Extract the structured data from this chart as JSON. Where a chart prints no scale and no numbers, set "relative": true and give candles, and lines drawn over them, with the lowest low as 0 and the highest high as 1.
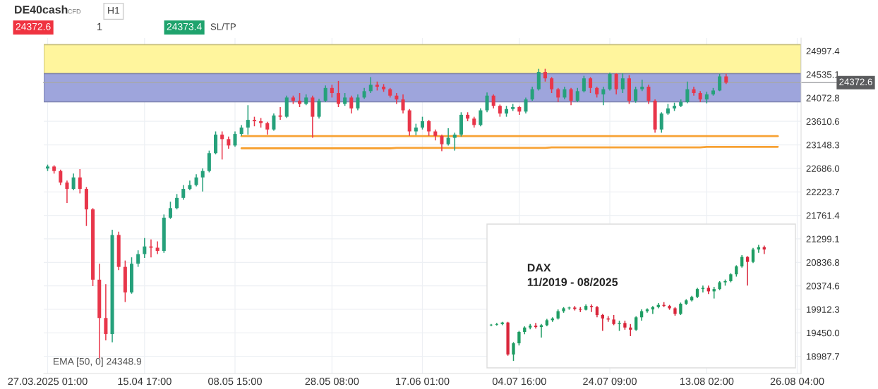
{
  "chart_data": [
    {
      "type": "candlestick",
      "categories": [
        "27.03.2025 01:00",
        null,
        null,
        null,
        null,
        null,
        null,
        null,
        null,
        null,
        null,
        null,
        null,
        null,
        null,
        "15.04 17:00",
        null,
        null,
        null,
        null,
        null,
        null,
        null,
        null,
        null,
        null,
        null,
        null,
        null,
        "08.05 15:00",
        null,
        null,
        null,
        null,
        null,
        null,
        null,
        null,
        null,
        null,
        null,
        null,
        null,
        null,
        "28.05 08:00",
        null,
        null,
        null,
        null,
        null,
        null,
        null,
        null,
        null,
        null,
        null,
        null,
        null,
        "17.06 01:00",
        null,
        null,
        null,
        null,
        null,
        null,
        null,
        null,
        null,
        null,
        null,
        null,
        null,
        null,
        "04.07 16:00",
        null,
        null,
        null,
        null,
        null,
        null,
        null,
        null,
        null,
        null,
        null,
        null,
        null,
        "24.07 09:00",
        null,
        null,
        null,
        null,
        null,
        null,
        null,
        null,
        null,
        null,
        null,
        null,
        null,
        null,
        "13.08 02:00",
        null,
        null,
        null,
        null,
        null,
        null,
        null,
        null,
        null,
        null,
        null,
        null,
        null,
        "26.08 04:00"
      ],
      "ohlc": [
        [
          22684,
          22759,
          22634,
          22722
        ],
        [
          22722,
          22747,
          22583,
          22634
        ],
        [
          22634,
          22659,
          22357,
          22407
        ],
        [
          22407,
          22445,
          22005,
          22282
        ],
        [
          22282,
          22583,
          22256,
          22508
        ],
        [
          22508,
          22671,
          22193,
          22282
        ],
        [
          22282,
          22319,
          21552,
          21879
        ],
        [
          21879,
          21904,
          20370,
          20496
        ],
        [
          20496,
          20810,
          18949,
          19742
        ],
        [
          19742,
          20408,
          19301,
          19427
        ],
        [
          19427,
          21477,
          19264,
          21376
        ],
        [
          21376,
          21439,
          20685,
          20748
        ],
        [
          20748,
          20873,
          20056,
          20245
        ],
        [
          20245,
          20936,
          20220,
          20810
        ],
        [
          20810,
          21074,
          20748,
          20999
        ],
        [
          20999,
          21314,
          20924,
          21150
        ],
        [
          21150,
          21289,
          20936,
          21125
        ],
        [
          21125,
          21251,
          20999,
          21062
        ],
        [
          21062,
          21779,
          21024,
          21716
        ],
        [
          21716,
          22030,
          21691,
          21904
        ],
        [
          21904,
          22181,
          21879,
          22105
        ],
        [
          22105,
          22357,
          22068,
          22282
        ],
        [
          22282,
          22445,
          22256,
          22357
        ],
        [
          22357,
          22571,
          22332,
          22508
        ],
        [
          22508,
          22684,
          22231,
          22634
        ],
        [
          22634,
          23036,
          22608,
          22986
        ],
        [
          22986,
          23413,
          22961,
          23350
        ],
        [
          23350,
          23413,
          22860,
          23262
        ],
        [
          23262,
          23313,
          23074,
          23137
        ],
        [
          23137,
          23413,
          23111,
          23363
        ],
        [
          23363,
          23539,
          23325,
          23489
        ],
        [
          23489,
          23929,
          23350,
          23640
        ],
        [
          23640,
          23702,
          23514,
          23614
        ],
        [
          23614,
          23677,
          23489,
          23577
        ],
        [
          23577,
          23602,
          23350,
          23451
        ],
        [
          23451,
          23765,
          23426,
          23727
        ],
        [
          23727,
          23891,
          23640,
          23702
        ],
        [
          23702,
          24117,
          23677,
          24080
        ],
        [
          24080,
          24117,
          23954,
          24017
        ],
        [
          24017,
          24168,
          23891,
          23954
        ],
        [
          23954,
          24142,
          23929,
          24080
        ],
        [
          24080,
          24117,
          23287,
          23702
        ],
        [
          23702,
          24054,
          23665,
          24017
        ],
        [
          24017,
          24318,
          23991,
          24268
        ],
        [
          24268,
          24331,
          24080,
          24168
        ],
        [
          24168,
          24406,
          23891,
          23954
        ],
        [
          23954,
          24168,
          23916,
          24080
        ],
        [
          24080,
          24117,
          23765,
          23866
        ],
        [
          23866,
          24142,
          23828,
          24080
        ],
        [
          24080,
          24268,
          24054,
          24205
        ],
        [
          24205,
          24482,
          24168,
          24331
        ],
        [
          24331,
          24394,
          24218,
          24293
        ],
        [
          24293,
          24344,
          24193,
          24243
        ],
        [
          24243,
          24268,
          24080,
          24117
        ],
        [
          24117,
          24168,
          23954,
          24042
        ],
        [
          24042,
          24142,
          23765,
          23828
        ],
        [
          23828,
          23853,
          23325,
          23413
        ],
        [
          23413,
          23564,
          23338,
          23489
        ],
        [
          23489,
          23702,
          23451,
          23614
        ],
        [
          23614,
          23640,
          23325,
          23413
        ],
        [
          23413,
          23451,
          23237,
          23325
        ],
        [
          23325,
          23350,
          23024,
          23162
        ],
        [
          23162,
          23476,
          23137,
          23287
        ],
        [
          23287,
          23388,
          23036,
          23350
        ],
        [
          23350,
          23790,
          23313,
          23740
        ],
        [
          23740,
          23790,
          23614,
          23665
        ],
        [
          23665,
          23702,
          23489,
          23539
        ],
        [
          23539,
          23866,
          23514,
          23828
        ],
        [
          23828,
          24180,
          23790,
          24117
        ],
        [
          24117,
          24142,
          23866,
          23916
        ],
        [
          23916,
          23941,
          23702,
          23765
        ],
        [
          23765,
          23916,
          23702,
          23853
        ],
        [
          23853,
          23954,
          23816,
          23891
        ],
        [
          23891,
          23916,
          23740,
          23803
        ],
        [
          23803,
          24080,
          23765,
          24042
        ],
        [
          24042,
          24293,
          24017,
          24243
        ],
        [
          24243,
          24645,
          24218,
          24583
        ],
        [
          24583,
          24645,
          24394,
          24457
        ],
        [
          24457,
          24482,
          24168,
          24243
        ],
        [
          24243,
          24268,
          23991,
          24080
        ],
        [
          24080,
          24293,
          24042,
          24243
        ],
        [
          24243,
          24268,
          23929,
          24017
        ],
        [
          24017,
          24268,
          23991,
          24205
        ],
        [
          24205,
          24507,
          24180,
          24457
        ],
        [
          24457,
          24482,
          24168,
          24268
        ],
        [
          24268,
          24293,
          24080,
          24142
        ],
        [
          24142,
          24293,
          23929,
          24243
        ],
        [
          24243,
          24570,
          24218,
          24545
        ],
        [
          24545,
          24557,
          24142,
          24243
        ],
        [
          24243,
          24557,
          24168,
          24457
        ],
        [
          24457,
          24520,
          23954,
          24017
        ],
        [
          24017,
          24293,
          23979,
          24243
        ],
        [
          24243,
          24432,
          24205,
          24293
        ],
        [
          24293,
          24331,
          23954,
          24017
        ],
        [
          24017,
          24042,
          23388,
          23451
        ],
        [
          23451,
          23790,
          23388,
          23765
        ],
        [
          23765,
          23954,
          23740,
          23866
        ],
        [
          23866,
          23979,
          23816,
          23916
        ],
        [
          23916,
          24042,
          23891,
          23991
        ],
        [
          23991,
          24394,
          23966,
          24243
        ],
        [
          24243,
          24293,
          24117,
          24168
        ],
        [
          24168,
          24205,
          23991,
          24042
        ],
        [
          24042,
          24193,
          23966,
          24142
        ],
        [
          24142,
          24268,
          24117,
          24218
        ],
        [
          24218,
          24545,
          24205,
          24495
        ],
        [
          24495,
          24545,
          24344,
          24372.6
        ],
        null,
        null,
        null,
        null,
        null,
        null,
        null,
        null,
        null,
        null,
        null
      ],
      "colors": [
        "#26a17b",
        "#e8364a",
        "#e8364a",
        "#e8364a",
        "#26a17b",
        "#e8364a",
        "#e8364a",
        "#e8364a",
        "#e8364a",
        "#e8364a",
        "#26a17b",
        "#e8364a",
        "#e8364a",
        "#26a17b",
        "#26a17b",
        "#26a17b",
        "#e8364a",
        "#e8364a",
        "#26a17b",
        "#26a17b",
        "#26a17b",
        "#26a17b",
        "#26a17b",
        "#26a17b",
        "#26a17b",
        "#26a17b",
        "#26a17b",
        "#e8364a",
        "#e8364a",
        "#26a17b",
        "#26a17b",
        "#26a17b",
        "#e8364a",
        "#e8364a",
        "#e8364a",
        "#26a17b",
        "#e8364a",
        "#26a17b",
        "#e8364a",
        "#e8364a",
        "#26a17b",
        "#e8364a",
        "#26a17b",
        "#26a17b",
        "#e8364a",
        "#e8364a",
        "#26a17b",
        "#e8364a",
        "#26a17b",
        "#26a17b",
        "#26a17b",
        "#e8364a",
        "#e8364a",
        "#e8364a",
        "#e8364a",
        "#e8364a",
        "#e8364a",
        "#26a17b",
        "#26a17b",
        "#e8364a",
        "#e8364a",
        "#e8364a",
        "#26a17b",
        "#26a17b",
        "#26a17b",
        "#e8364a",
        "#e8364a",
        "#26a17b",
        "#26a17b",
        "#e8364a",
        "#e8364a",
        "#26a17b",
        "#26a17b",
        "#e8364a",
        "#26a17b",
        "#26a17b",
        "#26a17b",
        "#e8364a",
        "#e8364a",
        "#e8364a",
        "#26a17b",
        "#e8364a",
        "#26a17b",
        "#26a17b",
        "#e8364a",
        "#e8364a",
        "#26a17b",
        "#26a17b",
        "#e8364a",
        "#26a17b",
        "#e8364a",
        "#26a17b",
        "#26a17b",
        "#e8364a",
        "#e8364a",
        "#26a17b",
        "#26a17b",
        "#26a17b",
        "#26a17b",
        "#26a17b",
        "#e8364a",
        "#e8364a",
        "#26a17b",
        "#26a17b",
        "#26a17b",
        "#e8364a",
        null,
        null,
        null,
        null,
        null,
        null,
        null,
        null,
        null,
        null,
        null
      ],
      "series": [
        {
          "type": "line",
          "color": "#f7a234",
          "values": [
            null,
            null,
            null,
            null,
            null,
            null,
            null,
            null,
            null,
            null,
            null,
            null,
            null,
            null,
            null,
            null,
            null,
            null,
            null,
            null,
            null,
            null,
            null,
            null,
            null,
            null,
            null,
            null,
            null,
            null,
            23320,
            23320,
            23320,
            23320,
            23320,
            23320,
            23320,
            23320,
            23320,
            23320,
            23320,
            23320,
            23320,
            23320,
            23320,
            23320,
            23320,
            23320,
            23320,
            23320,
            23320,
            23320,
            23320,
            23320,
            23320,
            23320,
            23320,
            23320,
            23320,
            23320,
            23320,
            23320,
            23320,
            23320,
            23320,
            23320,
            23320,
            23320,
            23320,
            23320,
            23320,
            23320,
            23320,
            23320,
            23320,
            23320,
            23320,
            23320,
            23320,
            23320,
            23320,
            23320,
            23320,
            23320,
            23320,
            23320,
            23320,
            23320,
            23320,
            23320,
            23320,
            23320,
            23320,
            23320,
            23320,
            23320,
            23320,
            23320,
            23320,
            23320,
            23320,
            23320,
            23320,
            23320,
            23320,
            23320,
            23320,
            23320,
            23320,
            23320,
            23320,
            23320,
            23320,
            23320,
            null,
            null,
            null
          ]
        },
        {
          "type": "line",
          "color": "#f7a234",
          "values": [
            null,
            null,
            null,
            null,
            null,
            null,
            null,
            null,
            null,
            null,
            null,
            null,
            null,
            null,
            null,
            null,
            null,
            null,
            null,
            null,
            null,
            null,
            null,
            null,
            null,
            null,
            null,
            null,
            null,
            null,
            23080,
            23080,
            23080,
            23080,
            23080,
            23080,
            23080,
            23080,
            23080,
            23080,
            23080,
            23080,
            23080,
            23080,
            23080,
            23080,
            23080,
            23080,
            23080,
            23080,
            23080,
            23080,
            23080,
            23080,
            23090,
            23090,
            23090,
            23090,
            23090,
            23090,
            23090,
            23090,
            23090,
            23090,
            23090,
            23090,
            23090,
            23090,
            23090,
            23090,
            23090,
            23090,
            23090,
            23090,
            23090,
            23090,
            23090,
            23090,
            23100,
            23100,
            23100,
            23100,
            23100,
            23100,
            23100,
            23100,
            23100,
            23100,
            23100,
            23100,
            23100,
            23100,
            23100,
            23100,
            23100,
            23100,
            23100,
            23100,
            23100,
            23100,
            23100,
            23100,
            23110,
            23110,
            23110,
            23110,
            23110,
            23110,
            23110,
            23110,
            23110,
            23110,
            23110,
            23110,
            null,
            null,
            null
          ]
        }
      ],
      "bands": [
        {
          "axis": "y",
          "from": 24550,
          "to": 25120,
          "color": "#fff59d"
        },
        {
          "axis": "y",
          "from": 23995,
          "to": 24550,
          "color": "#9ea5dc"
        }
      ],
      "ref_lines": [
        {
          "axis": "y",
          "value": 24372.6,
          "label": "24372.6",
          "color": "#a6a8ab"
        }
      ],
      "ylim": [
        18650,
        25250
      ],
      "yticks": [
        18987.7,
        {
          "value": 19450.0,
          "label": "19450.0"
        },
        19912.3,
        20374.6,
        20836.8,
        21299.1,
        21761.4,
        22223.7,
        {
          "value": 22686.0,
          "label": "22686.0"
        },
        23148.3,
        23610.6,
        24072.8,
        24535.1,
        24997.4
      ],
      "grid": true,
      "annotations": [
        "DE40cash",
        "CFD",
        "H1",
        "24372.6",
        "1",
        "24373.4",
        "SL/TP",
        "EMA [50, 0] 24348.9"
      ]
    },
    {
      "type": "candlestick",
      "title": "DAX",
      "subtitle": "11/2019 - 08/2025",
      "categories": [
        null,
        null,
        null,
        null,
        null,
        null,
        null,
        null,
        null,
        null,
        null,
        null,
        null,
        null,
        null,
        null,
        null,
        null,
        null,
        null,
        null,
        null,
        null,
        null,
        null,
        null,
        null,
        null,
        null,
        null,
        null,
        null,
        null,
        null,
        null,
        null,
        null,
        null,
        null,
        null,
        null,
        null,
        null,
        null,
        null,
        null,
        null,
        null,
        null,
        null
      ],
      "ohlc": [
        [
          0.308,
          0.318,
          0.298,
          0.312
        ],
        [
          0.312,
          0.327,
          0.304,
          0.318
        ],
        [
          0.318,
          0.337,
          0.308,
          0.331
        ],
        [
          0.331,
          0.337,
          0.045,
          0.055
        ],
        [
          0.055,
          0.162,
          0,
          0.152
        ],
        [
          0.152,
          0.259,
          0.133,
          0.25
        ],
        [
          0.25,
          0.298,
          0.23,
          0.288
        ],
        [
          0.288,
          0.318,
          0.273,
          0.304
        ],
        [
          0.304,
          0.327,
          0.279,
          0.292
        ],
        [
          0.292,
          0.318,
          0.201,
          0.308
        ],
        [
          0.308,
          0.363,
          0.298,
          0.351
        ],
        [
          0.351,
          0.376,
          0.337,
          0.366
        ],
        [
          0.366,
          0.444,
          0.357,
          0.429
        ],
        [
          0.429,
          0.464,
          0.415,
          0.454
        ],
        [
          0.454,
          0.468,
          0.441,
          0.46
        ],
        [
          0.46,
          0.474,
          0.435,
          0.448
        ],
        [
          0.448,
          0.464,
          0.421,
          0.441
        ],
        [
          0.441,
          0.487,
          0.435,
          0.474
        ],
        [
          0.474,
          0.487,
          0.421,
          0.464
        ],
        [
          0.464,
          0.474,
          0.376,
          0.396
        ],
        [
          0.396,
          0.405,
          0.259,
          0.366
        ],
        [
          0.366,
          0.386,
          0.337,
          0.357
        ],
        [
          0.357,
          0.396,
          0.308,
          0.318
        ],
        [
          0.318,
          0.347,
          0.259,
          0.327
        ],
        [
          0.327,
          0.347,
          0.269,
          0.288
        ],
        [
          0.288,
          0.318,
          0.214,
          0.269
        ],
        [
          0.269,
          0.386,
          0.259,
          0.376
        ],
        [
          0.376,
          0.444,
          0.347,
          0.429
        ],
        [
          0.429,
          0.454,
          0.415,
          0.444
        ],
        [
          0.444,
          0.474,
          0.405,
          0.464
        ],
        [
          0.464,
          0.499,
          0.454,
          0.483
        ],
        [
          0.483,
          0.507,
          0.464,
          0.474
        ],
        [
          0.474,
          0.483,
          0.441,
          0.454
        ],
        [
          0.454,
          0.464,
          0.39,
          0.405
        ],
        [
          0.405,
          0.503,
          0.396,
          0.493
        ],
        [
          0.493,
          0.532,
          0.483,
          0.522
        ],
        [
          0.522,
          0.561,
          0.513,
          0.552
        ],
        [
          0.552,
          0.63,
          0.542,
          0.62
        ],
        [
          0.62,
          0.649,
          0.591,
          0.63
        ],
        [
          0.63,
          0.649,
          0.577,
          0.6
        ],
        [
          0.6,
          0.639,
          0.538,
          0.62
        ],
        [
          0.62,
          0.688,
          0.61,
          0.678
        ],
        [
          0.678,
          0.702,
          0.649,
          0.688
        ],
        [
          0.688,
          0.756,
          0.678,
          0.747
        ],
        [
          0.747,
          0.825,
          0.727,
          0.815
        ],
        [
          0.815,
          0.912,
          0.805,
          0.897
        ],
        [
          0.897,
          0.903,
          0.649,
          0.854
        ],
        [
          0.854,
          0.975,
          0.844,
          0.961
        ],
        [
          0.961,
          1,
          0.932,
          0.981
        ],
        [
          0.981,
          0.994,
          0.922,
          0.961
        ]
      ],
      "colors": [
        "#1f9d63",
        "#1f9d63",
        "#1f9d63",
        "#d9263b",
        "#1f9d63",
        "#1f9d63",
        "#1f9d63",
        "#1f9d63",
        "#d9263b",
        "#1f9d63",
        "#1f9d63",
        "#1f9d63",
        "#1f9d63",
        "#1f9d63",
        "#1f9d63",
        "#d9263b",
        "#d9263b",
        "#1f9d63",
        "#d9263b",
        "#d9263b",
        "#d9263b",
        "#d9263b",
        "#d9263b",
        "#1f9d63",
        "#d9263b",
        "#d9263b",
        "#1f9d63",
        "#1f9d63",
        "#1f9d63",
        "#1f9d63",
        "#1f9d63",
        "#d9263b",
        "#d9263b",
        "#d9263b",
        "#1f9d63",
        "#1f9d63",
        "#1f9d63",
        "#1f9d63",
        "#1f9d63",
        "#d9263b",
        "#1f9d63",
        "#1f9d63",
        "#1f9d63",
        "#1f9d63",
        "#1f9d63",
        "#1f9d63",
        "#d9263b",
        "#1f9d63",
        "#1f9d63",
        "#d9263b"
      ],
      "relative": true
    }
  ]
}
